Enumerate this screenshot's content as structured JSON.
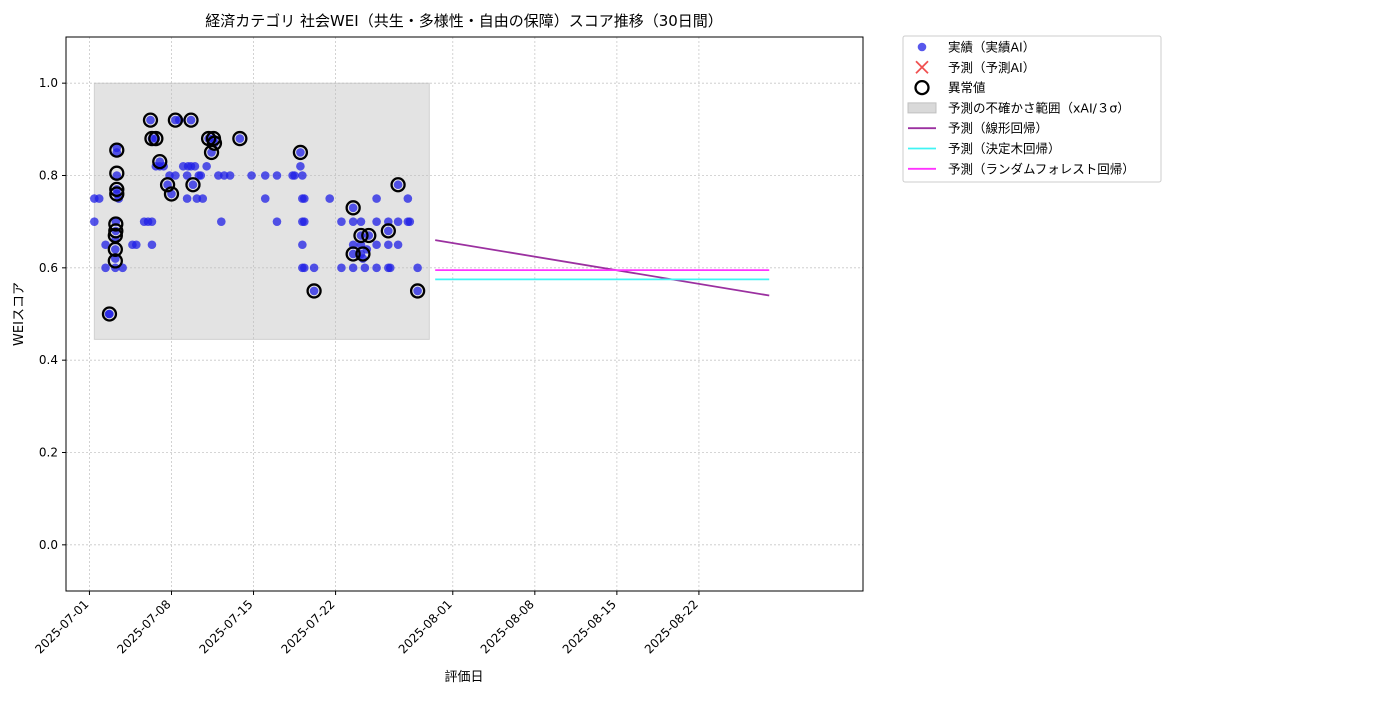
{
  "chart_data": {
    "type": "scatter",
    "title": "経済カテゴリ 社会WEI（共生・多様性・自由の保障）スコア推移（30日間）",
    "xlabel": "評価日",
    "ylabel": "WEIスコア",
    "xlim": [
      "2025-06-29",
      "2025-09-05"
    ],
    "ylim": [
      -0.1,
      1.1
    ],
    "x_ticks": [
      "2025-07-01",
      "2025-07-08",
      "2025-07-15",
      "2025-07-22",
      "2025-08-01",
      "2025-08-08",
      "2025-08-15",
      "2025-08-22"
    ],
    "y_ticks": [
      0.0,
      0.2,
      0.4,
      0.6,
      0.8,
      1.0
    ],
    "y_tick_labels": [
      "0.0",
      "0.2",
      "0.4",
      "0.6",
      "0.8",
      "1.0"
    ],
    "grid": true,
    "legend_position": "outside-right-top",
    "legend": [
      {
        "label": "実績（実績AI）",
        "kind": "dot",
        "color": "#1f1fe6"
      },
      {
        "label": "予測（予測AI）",
        "kind": "x",
        "color": "#f05050"
      },
      {
        "label": "異常値",
        "kind": "ring",
        "color": "#000000"
      },
      {
        "label": "予測の不確かさ範囲（xAI/３σ）",
        "kind": "band",
        "color": "#d9d9d9"
      },
      {
        "label": "予測（線形回帰）",
        "kind": "line",
        "color": "#9b30a0"
      },
      {
        "label": "予測（決定木回帰）",
        "kind": "line",
        "color": "#40f4f4"
      },
      {
        "label": "予測（ランダムフォレスト回帰）",
        "kind": "line",
        "color": "#ff33ff"
      }
    ],
    "uncertainty_band": {
      "x_start": "2025-07-01 10:00",
      "x_end": "2025-07-30 00:00",
      "y_low": 0.445,
      "y_high": 1.0
    },
    "series": [
      {
        "name": "実績（実績AI）",
        "color": "#1f1fe6",
        "points": [
          [
            "2025-07-01 10:00",
            0.75
          ],
          [
            "2025-07-01 10:00",
            0.7
          ],
          [
            "2025-07-01 20:00",
            0.75
          ],
          [
            "2025-07-02 09:00",
            0.65
          ],
          [
            "2025-07-02 09:00",
            0.6
          ],
          [
            "2025-07-02 16:00",
            0.5
          ],
          [
            "2025-07-02 17:00",
            0.5
          ],
          [
            "2025-07-03 05:00",
            0.6
          ],
          [
            "2025-07-03 05:00",
            0.62
          ],
          [
            "2025-07-03 05:00",
            0.64
          ],
          [
            "2025-07-03 05:00",
            0.66
          ],
          [
            "2025-07-03 06:00",
            0.68
          ],
          [
            "2025-07-03 06:00",
            0.7
          ],
          [
            "2025-07-03 08:00",
            0.76
          ],
          [
            "2025-07-03 08:00",
            0.77
          ],
          [
            "2025-07-03 08:00",
            0.8
          ],
          [
            "2025-07-03 08:00",
            0.85
          ],
          [
            "2025-07-03 08:00",
            0.86
          ],
          [
            "2025-07-03 12:00",
            0.75
          ],
          [
            "2025-07-03 20:00",
            0.6
          ],
          [
            "2025-07-04 16:00",
            0.65
          ],
          [
            "2025-07-05 00:00",
            0.65
          ],
          [
            "2025-07-05 16:00",
            0.7
          ],
          [
            "2025-07-06 00:00",
            0.7
          ],
          [
            "2025-07-06 05:00",
            0.92
          ],
          [
            "2025-07-06 08:00",
            0.88
          ],
          [
            "2025-07-06 08:00",
            0.7
          ],
          [
            "2025-07-06 08:00",
            0.65
          ],
          [
            "2025-07-06 16:00",
            0.82
          ],
          [
            "2025-07-06 16:00",
            0.88
          ],
          [
            "2025-07-07 00:00",
            0.82
          ],
          [
            "2025-07-07 00:00",
            0.83
          ],
          [
            "2025-07-07 08:00",
            0.82
          ],
          [
            "2025-07-07 16:00",
            0.78
          ],
          [
            "2025-07-07 20:00",
            0.8
          ],
          [
            "2025-07-08 00:00",
            0.76
          ],
          [
            "2025-07-08 08:00",
            0.8
          ],
          [
            "2025-07-08 08:00",
            0.92
          ],
          [
            "2025-07-08 16:00",
            0.92
          ],
          [
            "2025-07-09 00:00",
            0.82
          ],
          [
            "2025-07-09 08:00",
            0.8
          ],
          [
            "2025-07-09 08:00",
            0.75
          ],
          [
            "2025-07-09 10:00",
            0.82
          ],
          [
            "2025-07-09 16:00",
            0.92
          ],
          [
            "2025-07-09 16:00",
            0.82
          ],
          [
            "2025-07-09 20:00",
            0.78
          ],
          [
            "2025-07-10 00:00",
            0.82
          ],
          [
            "2025-07-10 04:00",
            0.75
          ],
          [
            "2025-07-10 08:00",
            0.8
          ],
          [
            "2025-07-10 12:00",
            0.8
          ],
          [
            "2025-07-10 16:00",
            0.75
          ],
          [
            "2025-07-11 00:00",
            0.82
          ],
          [
            "2025-07-11 04:00",
            0.88
          ],
          [
            "2025-07-11 10:00",
            0.85
          ],
          [
            "2025-07-11 14:00",
            0.88
          ],
          [
            "2025-07-11 16:00",
            0.87
          ],
          [
            "2025-07-12 00:00",
            0.8
          ],
          [
            "2025-07-12 06:00",
            0.7
          ],
          [
            "2025-07-12 12:00",
            0.8
          ],
          [
            "2025-07-13 00:00",
            0.8
          ],
          [
            "2025-07-13 20:00",
            0.88
          ],
          [
            "2025-07-14 20:00",
            0.8
          ],
          [
            "2025-07-16 00:00",
            0.8
          ],
          [
            "2025-07-16 00:00",
            0.75
          ],
          [
            "2025-07-17 00:00",
            0.8
          ],
          [
            "2025-07-17 00:00",
            0.7
          ],
          [
            "2025-07-18 08:00",
            0.8
          ],
          [
            "2025-07-18 12:00",
            0.8
          ],
          [
            "2025-07-19 00:00",
            0.85
          ],
          [
            "2025-07-19 00:00",
            0.82
          ],
          [
            "2025-07-19 04:00",
            0.8
          ],
          [
            "2025-07-19 04:00",
            0.75
          ],
          [
            "2025-07-19 04:00",
            0.7
          ],
          [
            "2025-07-19 04:00",
            0.65
          ],
          [
            "2025-07-19 04:00",
            0.6
          ],
          [
            "2025-07-19 08:00",
            0.75
          ],
          [
            "2025-07-19 08:00",
            0.7
          ],
          [
            "2025-07-19 08:00",
            0.6
          ],
          [
            "2025-07-20 04:00",
            0.55
          ],
          [
            "2025-07-20 04:00",
            0.6
          ],
          [
            "2025-07-21 12:00",
            0.75
          ],
          [
            "2025-07-22 12:00",
            0.7
          ],
          [
            "2025-07-22 12:00",
            0.6
          ],
          [
            "2025-07-23 12:00",
            0.73
          ],
          [
            "2025-07-23 12:00",
            0.7
          ],
          [
            "2025-07-23 12:00",
            0.65
          ],
          [
            "2025-07-23 12:00",
            0.63
          ],
          [
            "2025-07-23 12:00",
            0.6
          ],
          [
            "2025-07-24 04:00",
            0.7
          ],
          [
            "2025-07-24 04:00",
            0.67
          ],
          [
            "2025-07-24 04:00",
            0.65
          ],
          [
            "2025-07-24 04:00",
            0.63
          ],
          [
            "2025-07-24 08:00",
            0.62
          ],
          [
            "2025-07-24 12:00",
            0.6
          ],
          [
            "2025-07-24 16:00",
            0.64
          ],
          [
            "2025-07-24 20:00",
            0.67
          ],
          [
            "2025-07-25 12:00",
            0.75
          ],
          [
            "2025-07-25 12:00",
            0.7
          ],
          [
            "2025-07-25 12:00",
            0.65
          ],
          [
            "2025-07-25 12:00",
            0.6
          ],
          [
            "2025-07-26 12:00",
            0.7
          ],
          [
            "2025-07-26 12:00",
            0.68
          ],
          [
            "2025-07-26 12:00",
            0.65
          ],
          [
            "2025-07-26 12:00",
            0.6
          ],
          [
            "2025-07-26 16:00",
            0.6
          ],
          [
            "2025-07-27 08:00",
            0.78
          ],
          [
            "2025-07-27 08:00",
            0.7
          ],
          [
            "2025-07-27 08:00",
            0.65
          ],
          [
            "2025-07-28 04:00",
            0.75
          ],
          [
            "2025-07-28 04:00",
            0.7
          ],
          [
            "2025-07-28 08:00",
            0.7
          ],
          [
            "2025-07-29 00:00",
            0.55
          ],
          [
            "2025-07-29 00:00",
            0.6
          ]
        ]
      }
    ],
    "anomalies": {
      "name": "異常値",
      "points": [
        [
          "2025-07-02 17:00",
          0.5
        ],
        [
          "2025-07-03 05:00",
          0.615
        ],
        [
          "2025-07-03 05:00",
          0.64
        ],
        [
          "2025-07-03 05:00",
          0.67
        ],
        [
          "2025-07-03 06:00",
          0.68
        ],
        [
          "2025-07-03 06:00",
          0.695
        ],
        [
          "2025-07-03 08:00",
          0.76
        ],
        [
          "2025-07-03 08:00",
          0.77
        ],
        [
          "2025-07-03 08:00",
          0.805
        ],
        [
          "2025-07-03 08:00",
          0.855
        ],
        [
          "2025-07-06 05:00",
          0.92
        ],
        [
          "2025-07-06 08:00",
          0.88
        ],
        [
          "2025-07-06 16:00",
          0.88
        ],
        [
          "2025-07-07 00:00",
          0.83
        ],
        [
          "2025-07-07 16:00",
          0.78
        ],
        [
          "2025-07-08 00:00",
          0.76
        ],
        [
          "2025-07-08 08:00",
          0.92
        ],
        [
          "2025-07-09 16:00",
          0.92
        ],
        [
          "2025-07-09 20:00",
          0.78
        ],
        [
          "2025-07-11 04:00",
          0.88
        ],
        [
          "2025-07-11 10:00",
          0.85
        ],
        [
          "2025-07-11 14:00",
          0.88
        ],
        [
          "2025-07-11 16:00",
          0.87
        ],
        [
          "2025-07-13 20:00",
          0.88
        ],
        [
          "2025-07-19 00:00",
          0.85
        ],
        [
          "2025-07-20 04:00",
          0.55
        ],
        [
          "2025-07-23 12:00",
          0.73
        ],
        [
          "2025-07-23 12:00",
          0.63
        ],
        [
          "2025-07-24 04:00",
          0.67
        ],
        [
          "2025-07-24 08:00",
          0.63
        ],
        [
          "2025-07-24 20:00",
          0.67
        ],
        [
          "2025-07-26 12:00",
          0.68
        ],
        [
          "2025-07-27 08:00",
          0.78
        ],
        [
          "2025-07-29 00:00",
          0.55
        ]
      ]
    },
    "forecast_lines": [
      {
        "name": "予測（線形回帰）",
        "color": "#9b30a0",
        "points": [
          [
            "2025-07-30 12:00",
            0.66
          ],
          [
            "2025-08-28 00:00",
            0.54
          ]
        ]
      },
      {
        "name": "予測（決定木回帰）",
        "color": "#40f4f4",
        "points": [
          [
            "2025-07-30 12:00",
            0.575
          ],
          [
            "2025-08-28 00:00",
            0.575
          ]
        ]
      },
      {
        "name": "予測（ランダムフォレスト回帰）",
        "color": "#ff33ff",
        "points": [
          [
            "2025-07-30 12:00",
            0.595
          ],
          [
            "2025-08-28 00:00",
            0.595
          ]
        ]
      }
    ]
  }
}
